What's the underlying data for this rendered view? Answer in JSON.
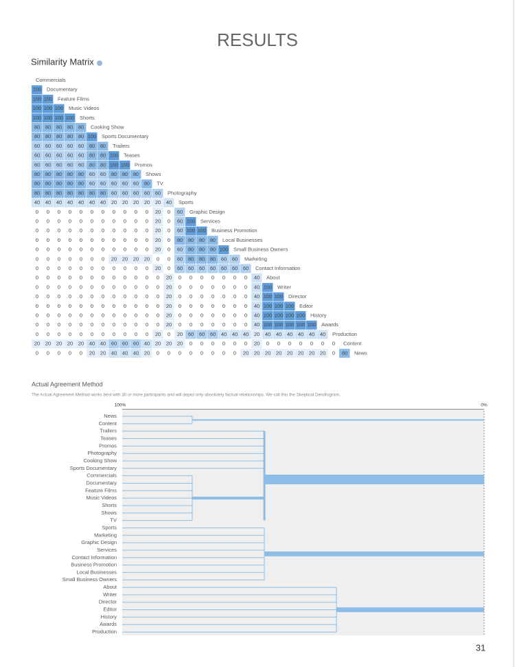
{
  "header": {
    "title": "RESULTS"
  },
  "matrix": {
    "title": "Similarity Matrix",
    "items": [
      "Commercials",
      "Documentary",
      "Feature Films",
      "Music Videos",
      "Shorts",
      "Cooking Show",
      "Sports Documentary",
      "Trailers",
      "Teases",
      "Promos",
      "Shows",
      "TV",
      "Photography",
      "Sports",
      "Graphic Design",
      "Services",
      "Business Promotion",
      "Local Businesses",
      "Small Business Owners",
      "Marketing",
      "Contact Information",
      "About",
      "Writer",
      "Director",
      "Editor",
      "History",
      "Awards",
      "Production",
      "Content",
      "News"
    ],
    "rows": [
      [
        100
      ],
      [
        100,
        100
      ],
      [
        100,
        100,
        100
      ],
      [
        100,
        100,
        100,
        100
      ],
      [
        80,
        80,
        80,
        80,
        80
      ],
      [
        80,
        80,
        80,
        80,
        80,
        100
      ],
      [
        60,
        60,
        60,
        60,
        60,
        80,
        80
      ],
      [
        60,
        60,
        60,
        60,
        60,
        80,
        80,
        100
      ],
      [
        60,
        60,
        60,
        60,
        60,
        80,
        80,
        100,
        100
      ],
      [
        80,
        80,
        80,
        80,
        80,
        60,
        60,
        80,
        80,
        80
      ],
      [
        80,
        80,
        80,
        80,
        80,
        60,
        60,
        60,
        60,
        60,
        80
      ],
      [
        80,
        80,
        80,
        80,
        80,
        80,
        80,
        60,
        60,
        60,
        60,
        60
      ],
      [
        40,
        40,
        40,
        40,
        40,
        40,
        40,
        20,
        20,
        20,
        20,
        20,
        40
      ],
      [
        0,
        0,
        0,
        0,
        0,
        0,
        0,
        0,
        0,
        0,
        0,
        20,
        0,
        60
      ],
      [
        0,
        0,
        0,
        0,
        0,
        0,
        0,
        0,
        0,
        0,
        0,
        20,
        0,
        60,
        100
      ],
      [
        0,
        0,
        0,
        0,
        0,
        0,
        0,
        0,
        0,
        0,
        0,
        20,
        0,
        60,
        100,
        100
      ],
      [
        0,
        0,
        0,
        0,
        0,
        0,
        0,
        0,
        0,
        0,
        0,
        20,
        0,
        80,
        80,
        80,
        80
      ],
      [
        0,
        0,
        0,
        0,
        0,
        0,
        0,
        0,
        0,
        0,
        0,
        20,
        0,
        60,
        80,
        80,
        80,
        100
      ],
      [
        0,
        0,
        0,
        0,
        0,
        0,
        0,
        20,
        20,
        20,
        20,
        0,
        0,
        60,
        80,
        80,
        80,
        60,
        60
      ],
      [
        0,
        0,
        0,
        0,
        0,
        0,
        0,
        0,
        0,
        0,
        0,
        20,
        0,
        60,
        60,
        60,
        60,
        60,
        60,
        60
      ],
      [
        0,
        0,
        0,
        0,
        0,
        0,
        0,
        0,
        0,
        0,
        0,
        0,
        20,
        0,
        0,
        0,
        0,
        0,
        0,
        0,
        40
      ],
      [
        0,
        0,
        0,
        0,
        0,
        0,
        0,
        0,
        0,
        0,
        0,
        0,
        20,
        0,
        0,
        0,
        0,
        0,
        0,
        0,
        40,
        100
      ],
      [
        0,
        0,
        0,
        0,
        0,
        0,
        0,
        0,
        0,
        0,
        0,
        0,
        20,
        0,
        0,
        0,
        0,
        0,
        0,
        0,
        40,
        100,
        100
      ],
      [
        0,
        0,
        0,
        0,
        0,
        0,
        0,
        0,
        0,
        0,
        0,
        0,
        20,
        0,
        0,
        0,
        0,
        0,
        0,
        0,
        40,
        100,
        100,
        100
      ],
      [
        0,
        0,
        0,
        0,
        0,
        0,
        0,
        0,
        0,
        0,
        0,
        0,
        20,
        0,
        0,
        0,
        0,
        0,
        0,
        0,
        40,
        100,
        100,
        100,
        100
      ],
      [
        0,
        0,
        0,
        0,
        0,
        0,
        0,
        0,
        0,
        0,
        0,
        0,
        20,
        0,
        0,
        0,
        0,
        0,
        0,
        0,
        40,
        100,
        100,
        100,
        100,
        100
      ],
      [
        0,
        0,
        0,
        0,
        0,
        0,
        0,
        0,
        0,
        0,
        0,
        20,
        0,
        20,
        60,
        60,
        60,
        40,
        40,
        40,
        20,
        40,
        40,
        40,
        40,
        40,
        40
      ],
      [
        20,
        20,
        20,
        20,
        20,
        40,
        40,
        60,
        60,
        60,
        40,
        20,
        20,
        20,
        0,
        0,
        0,
        0,
        0,
        0,
        20,
        0,
        0,
        0,
        0,
        0,
        0,
        0
      ],
      [
        0,
        0,
        0,
        0,
        0,
        20,
        20,
        40,
        40,
        40,
        20,
        0,
        0,
        0,
        0,
        0,
        0,
        0,
        0,
        20,
        20,
        20,
        20,
        20,
        20,
        20,
        20,
        0,
        80
      ]
    ]
  },
  "dendrogram": {
    "title": "Actual Agreement Method",
    "description": "The Actual Agreement Method works best with 30 or more participants and will depict only absolutely factual relationships. We call this the Skeptical Dendrogram.",
    "scale_start": "100%",
    "scale_end": "0%",
    "leaves": [
      "News",
      "Content",
      "Trailers",
      "Teases",
      "Promos",
      "Photography",
      "Cooking Show",
      "Sports Documentary",
      "Commercials",
      "Documentary",
      "Feature Films",
      "Music Videos",
      "Shorts",
      "Shows",
      "TV",
      "Sports",
      "Marketing",
      "Graphic Design",
      "Services",
      "Contact Information",
      "Business Promotion",
      "Local Businesses",
      "Small Business Owners",
      "About",
      "Writer",
      "Director",
      "Editor",
      "History",
      "Awards",
      "Production"
    ]
  },
  "page_number": "31"
}
